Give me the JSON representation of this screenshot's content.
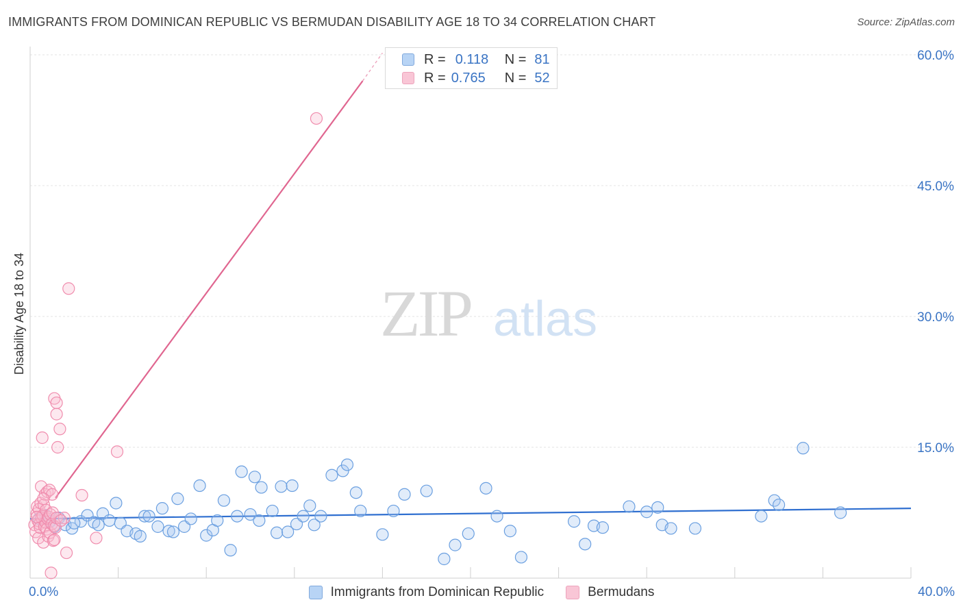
{
  "title": "IMMIGRANTS FROM DOMINICAN REPUBLIC VS BERMUDAN DISABILITY AGE 18 TO 34 CORRELATION CHART",
  "source": "Source: ZipAtlas.com",
  "watermark": {
    "zip": "ZIP",
    "atlas": "atlas"
  },
  "legend": {
    "rows": [
      {
        "r_label": "R =",
        "r_value": "0.118",
        "n_label": "N =",
        "n_value": "81"
      },
      {
        "r_label": "R =",
        "r_value": "0.765",
        "n_label": "N =",
        "n_value": "52"
      }
    ]
  },
  "chart_data": {
    "type": "scatter",
    "title": "IMMIGRANTS FROM DOMINICAN REPUBLIC VS BERMUDAN DISABILITY AGE 18 TO 34 CORRELATION CHART",
    "xlabel": "",
    "ylabel": "Disability Age 18 to 34",
    "xlim": [
      0,
      40
    ],
    "ylim": [
      0,
      62
    ],
    "x_tick_labels": [
      {
        "value": 0,
        "label": "0.0%"
      },
      {
        "value": 40,
        "label": "40.0%"
      }
    ],
    "x_minor_ticks": [
      4,
      8,
      12,
      16,
      20,
      24,
      28,
      32,
      36,
      40
    ],
    "y_ticks": [
      {
        "value": 15,
        "label": "15.0%"
      },
      {
        "value": 30,
        "label": "30.0%"
      },
      {
        "value": 45,
        "label": "45.0%"
      },
      {
        "value": 60,
        "label": "60.0%"
      }
    ],
    "colors": {
      "blue": "#6a9fe0",
      "blue_line": "#2f6fd0",
      "pink": "#f08cad",
      "pink_line": "#e06690",
      "tick_label": "#3a74c4"
    },
    "series": [
      {
        "name": "Immigrants from Dominican Republic",
        "color": "blue",
        "trend": {
          "x0": 0,
          "y0": 6.8,
          "x1": 40,
          "y1": 8.0
        },
        "points": [
          [
            0.4,
            6.8
          ],
          [
            0.7,
            7.2
          ],
          [
            0.9,
            6.5
          ],
          [
            1.1,
            5.9
          ],
          [
            1.3,
            6.9
          ],
          [
            1.6,
            6.1
          ],
          [
            1.9,
            5.7
          ],
          [
            2.3,
            6.5
          ],
          [
            2.6,
            7.2
          ],
          [
            2.9,
            6.4
          ],
          [
            3.1,
            6.1
          ],
          [
            3.3,
            7.4
          ],
          [
            3.6,
            6.6
          ],
          [
            3.9,
            8.6
          ],
          [
            4.1,
            6.3
          ],
          [
            4.4,
            5.4
          ],
          [
            4.8,
            5.1
          ],
          [
            5.0,
            4.8
          ],
          [
            5.2,
            7.1
          ],
          [
            5.4,
            7.1
          ],
          [
            5.8,
            5.9
          ],
          [
            6.0,
            8.0
          ],
          [
            6.3,
            5.4
          ],
          [
            6.5,
            5.3
          ],
          [
            6.7,
            9.1
          ],
          [
            7.0,
            5.9
          ],
          [
            7.3,
            6.8
          ],
          [
            7.7,
            10.6
          ],
          [
            8.0,
            4.9
          ],
          [
            8.3,
            5.5
          ],
          [
            8.5,
            6.6
          ],
          [
            8.8,
            8.9
          ],
          [
            9.1,
            3.2
          ],
          [
            9.4,
            7.1
          ],
          [
            9.6,
            12.2
          ],
          [
            10.0,
            7.3
          ],
          [
            10.2,
            11.6
          ],
          [
            10.4,
            6.6
          ],
          [
            10.5,
            10.4
          ],
          [
            11.0,
            7.7
          ],
          [
            11.2,
            5.2
          ],
          [
            11.4,
            10.5
          ],
          [
            11.7,
            5.3
          ],
          [
            11.9,
            10.6
          ],
          [
            12.1,
            6.2
          ],
          [
            12.4,
            7.1
          ],
          [
            12.7,
            8.3
          ],
          [
            12.9,
            6.1
          ],
          [
            13.2,
            7.1
          ],
          [
            13.7,
            11.8
          ],
          [
            14.2,
            12.3
          ],
          [
            14.4,
            13.0
          ],
          [
            14.8,
            9.8
          ],
          [
            15.0,
            7.7
          ],
          [
            16.0,
            5.0
          ],
          [
            16.5,
            7.7
          ],
          [
            17.0,
            9.6
          ],
          [
            18.0,
            10.0
          ],
          [
            18.8,
            2.2
          ],
          [
            19.3,
            3.8
          ],
          [
            19.9,
            5.1
          ],
          [
            20.7,
            10.3
          ],
          [
            21.2,
            7.1
          ],
          [
            21.8,
            5.4
          ],
          [
            22.3,
            2.4
          ],
          [
            24.7,
            6.5
          ],
          [
            25.2,
            3.9
          ],
          [
            25.6,
            6.0
          ],
          [
            26.0,
            5.8
          ],
          [
            27.2,
            8.2
          ],
          [
            28.0,
            7.6
          ],
          [
            28.5,
            8.1
          ],
          [
            28.7,
            6.1
          ],
          [
            29.1,
            5.7
          ],
          [
            30.2,
            5.7
          ],
          [
            33.2,
            7.1
          ],
          [
            33.8,
            8.9
          ],
          [
            34.0,
            8.4
          ],
          [
            35.1,
            14.9
          ],
          [
            36.8,
            7.5
          ],
          [
            2.0,
            6.3
          ]
        ]
      },
      {
        "name": "Bermudans",
        "color": "pink",
        "trend": {
          "x0": 1.15,
          "y0": 9.2,
          "x1": 15.1,
          "y1": 57.0,
          "dash_to_x": 16.0,
          "dash_to_y": 60.2
        },
        "points": [
          [
            0.2,
            6.1
          ],
          [
            0.25,
            5.3
          ],
          [
            0.3,
            7.4
          ],
          [
            0.32,
            8.2
          ],
          [
            0.35,
            6.6
          ],
          [
            0.38,
            4.6
          ],
          [
            0.4,
            7.9
          ],
          [
            0.42,
            6.2
          ],
          [
            0.45,
            5.8
          ],
          [
            0.48,
            8.6
          ],
          [
            0.5,
            10.5
          ],
          [
            0.52,
            6.9
          ],
          [
            0.55,
            16.1
          ],
          [
            0.58,
            7.2
          ],
          [
            0.6,
            4.1
          ],
          [
            0.62,
            8.4
          ],
          [
            0.65,
            5.9
          ],
          [
            0.68,
            9.6
          ],
          [
            0.7,
            6.4
          ],
          [
            0.72,
            7.8
          ],
          [
            0.75,
            5.6
          ],
          [
            0.78,
            9.9
          ],
          [
            0.8,
            6.8
          ],
          [
            0.82,
            4.8
          ],
          [
            0.85,
            7.0
          ],
          [
            0.88,
            10.1
          ],
          [
            0.9,
            5.2
          ],
          [
            0.92,
            7.3
          ],
          [
            0.95,
            0.6
          ],
          [
            0.98,
            6.2
          ],
          [
            1.0,
            9.6
          ],
          [
            1.02,
            7.5
          ],
          [
            1.05,
            4.3
          ],
          [
            1.08,
            6.0
          ],
          [
            1.1,
            4.4
          ],
          [
            1.15,
            5.8
          ],
          [
            1.2,
            6.9
          ],
          [
            1.1,
            20.6
          ],
          [
            1.2,
            18.8
          ],
          [
            1.2,
            20.1
          ],
          [
            1.25,
            15.0
          ],
          [
            1.35,
            17.1
          ],
          [
            1.55,
            6.9
          ],
          [
            1.65,
            2.9
          ],
          [
            1.75,
            33.2
          ],
          [
            2.35,
            9.5
          ],
          [
            3.0,
            4.6
          ],
          [
            3.95,
            14.5
          ],
          [
            13.0,
            52.7
          ],
          [
            0.3,
            7.0
          ],
          [
            0.6,
            9.1
          ],
          [
            1.4,
            6.6
          ]
        ]
      }
    ]
  },
  "bottom_legend": {
    "items": [
      {
        "label": "Immigrants from Dominican Republic",
        "color": "blue"
      },
      {
        "label": "Bermudans",
        "color": "pink"
      }
    ]
  }
}
